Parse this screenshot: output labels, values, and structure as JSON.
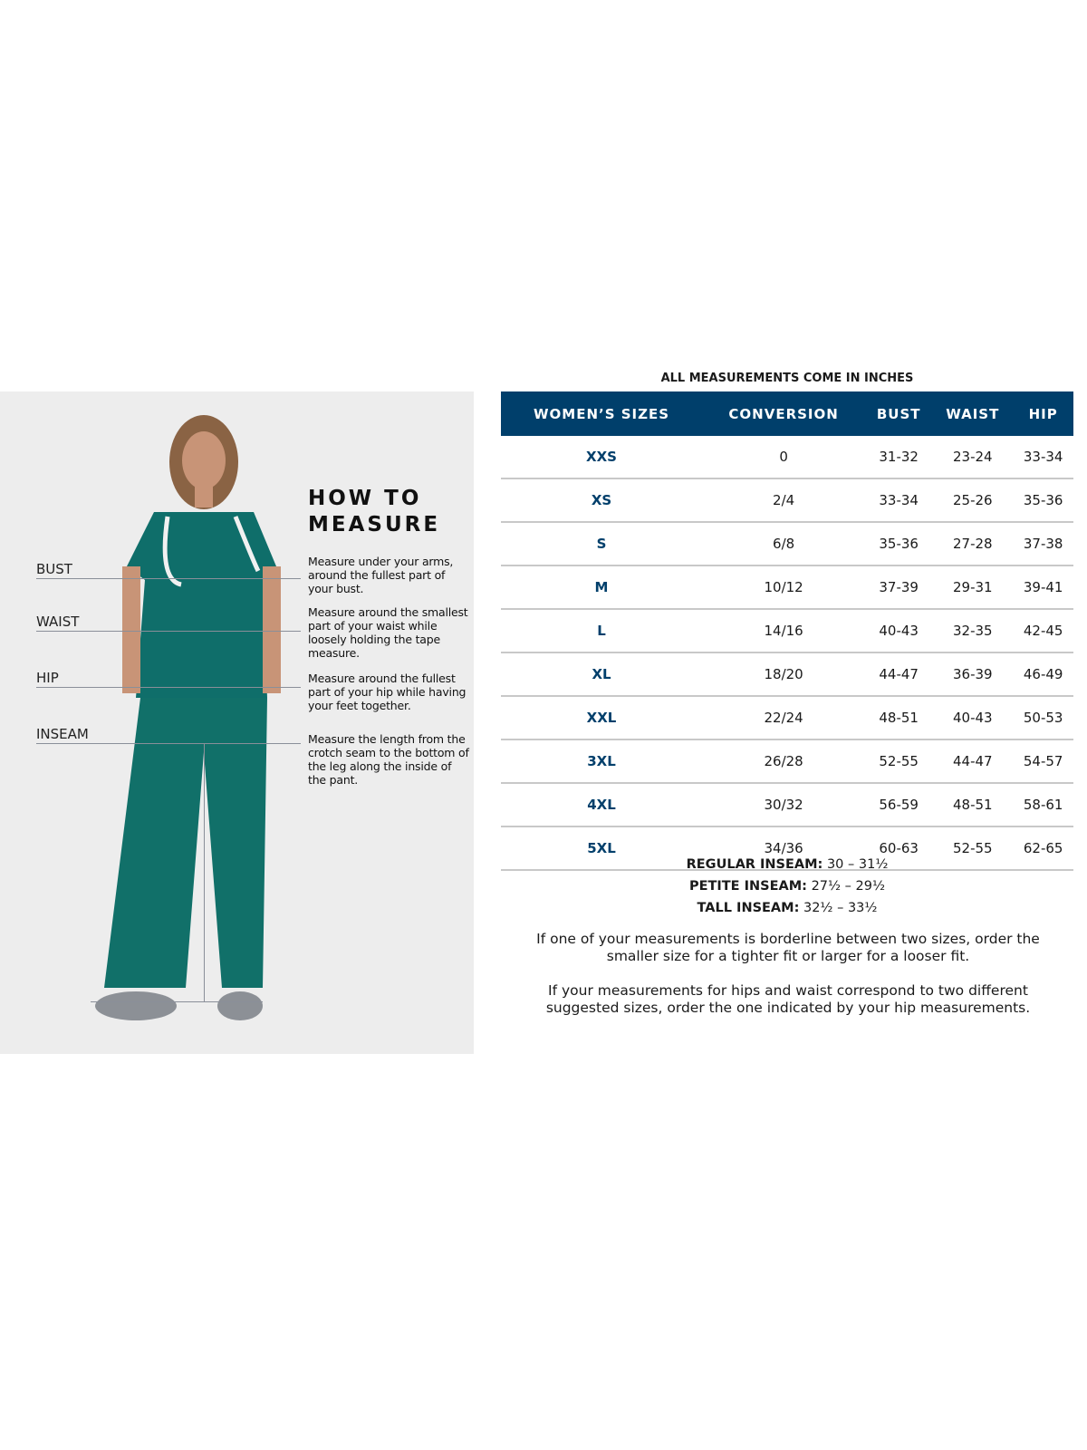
{
  "how_to_measure": {
    "heading_line1": "HOW TO",
    "heading_line2": "MEASURE",
    "measurements": [
      {
        "label": "BUST",
        "description": "Measure under your arms, around the fullest part of your bust."
      },
      {
        "label": "WAIST",
        "description": "Measure around the smallest part of your waist while loosely holding the tape measure."
      },
      {
        "label": "HIP",
        "description": "Measure around the fullest part of your hip while having your feet together."
      },
      {
        "label": "INSEAM",
        "description": "Measure the length from the crotch seam to the bottom of the leg along the inside of the pant."
      }
    ]
  },
  "size_chart": {
    "caption": "ALL MEASUREMENTS COME IN INCHES",
    "header_color": "#003f6b",
    "columns": [
      "WOMEN’S SIZES",
      "CONVERSION",
      "BUST",
      "WAIST",
      "HIP"
    ],
    "rows": [
      [
        "XXS",
        "0",
        "31-32",
        "23-24",
        "33-34"
      ],
      [
        "XS",
        "2/4",
        "33-34",
        "25-26",
        "35-36"
      ],
      [
        "S",
        "6/8",
        "35-36",
        "27-28",
        "37-38"
      ],
      [
        "M",
        "10/12",
        "37-39",
        "29-31",
        "39-41"
      ],
      [
        "L",
        "14/16",
        "40-43",
        "32-35",
        "42-45"
      ],
      [
        "XL",
        "18/20",
        "44-47",
        "36-39",
        "46-49"
      ],
      [
        "XXL",
        "22/24",
        "48-51",
        "40-43",
        "50-53"
      ],
      [
        "3XL",
        "26/28",
        "52-55",
        "44-47",
        "54-57"
      ],
      [
        "4XL",
        "30/32",
        "56-59",
        "48-51",
        "58-61"
      ],
      [
        "5XL",
        "34/36",
        "60-63",
        "52-55",
        "62-65"
      ]
    ]
  },
  "inseams": [
    {
      "label": "REGULAR INSEAM:",
      "value": "30  – 31½"
    },
    {
      "label": "PETITE INSEAM:",
      "value": "27½ – 29½"
    },
    {
      "label": "TALL INSEAM:",
      "value": "32½ – 33½"
    }
  ],
  "notes": [
    "If one of your measurements is borderline between two sizes, order the smaller size for a tighter fit or larger for a looser fit.",
    "If your measurements for hips and waist correspond to two different suggested sizes, order the one indicated by your hip measurements."
  ]
}
